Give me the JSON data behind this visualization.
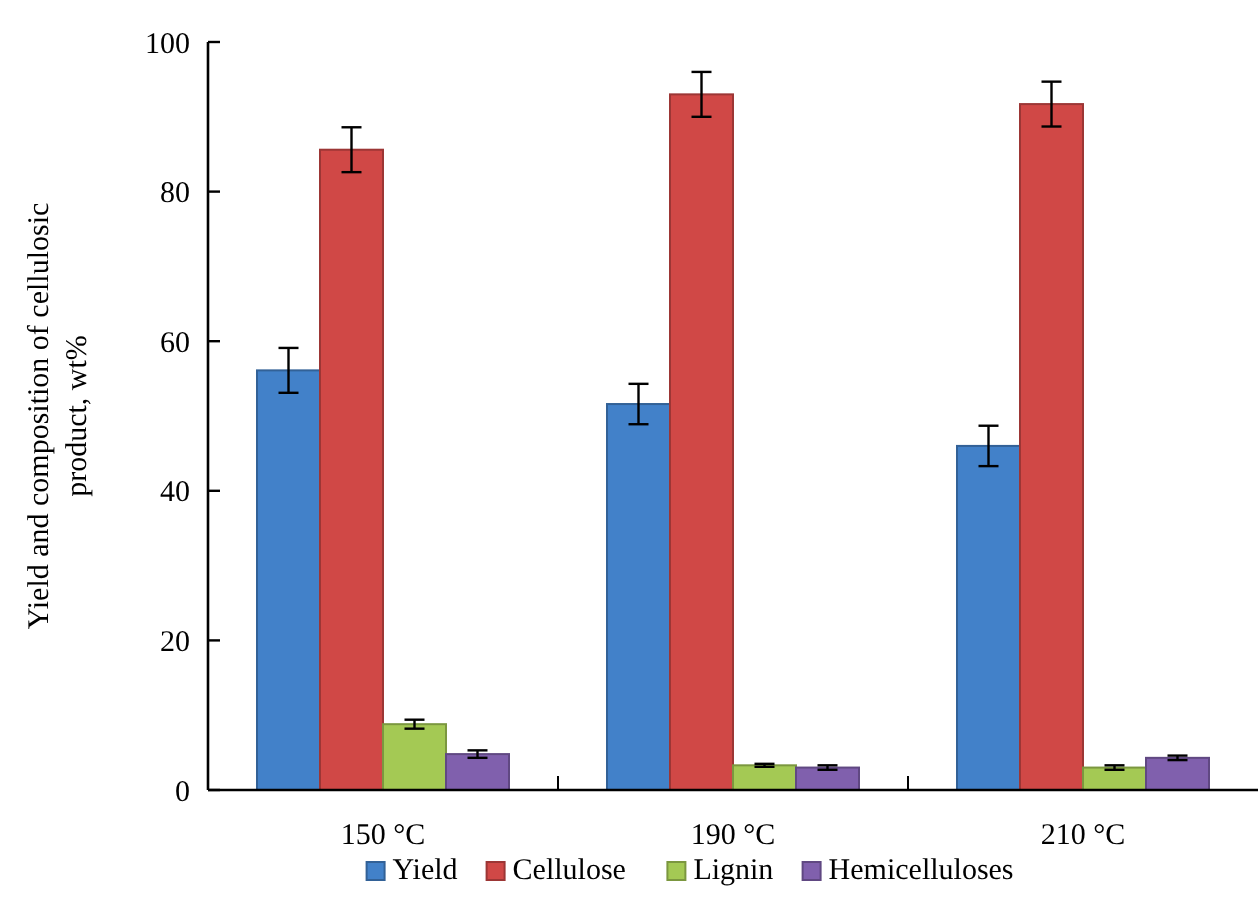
{
  "chart_data": {
    "type": "bar",
    "ylabel": "Yield and composition of cellulosic product, wt%",
    "categories": [
      "150 °C",
      "190 °C",
      "210 °C"
    ],
    "ylim": [
      0,
      100
    ],
    "yticks": [
      0,
      20,
      40,
      60,
      80,
      100
    ],
    "legend": "bottom",
    "grid": false,
    "series": [
      {
        "name": "Yield",
        "color": "#4281c9",
        "values": [
          56.1,
          51.6,
          46
        ],
        "errors": [
          3,
          2.7,
          2.7
        ]
      },
      {
        "name": "Cellulose",
        "color": "#d04846",
        "values": [
          85.6,
          93,
          91.7
        ],
        "errors": [
          3,
          3,
          3
        ]
      },
      {
        "name": "Lignin",
        "color": "#a4c954",
        "values": [
          8.8,
          3.3,
          3
        ],
        "errors": [
          0.6,
          0.2,
          0.3
        ]
      },
      {
        "name": "Hemicelluloses",
        "color": "#8060ad",
        "values": [
          4.8,
          3,
          4.3
        ],
        "errors": [
          0.5,
          0.3,
          0.3
        ]
      }
    ]
  }
}
